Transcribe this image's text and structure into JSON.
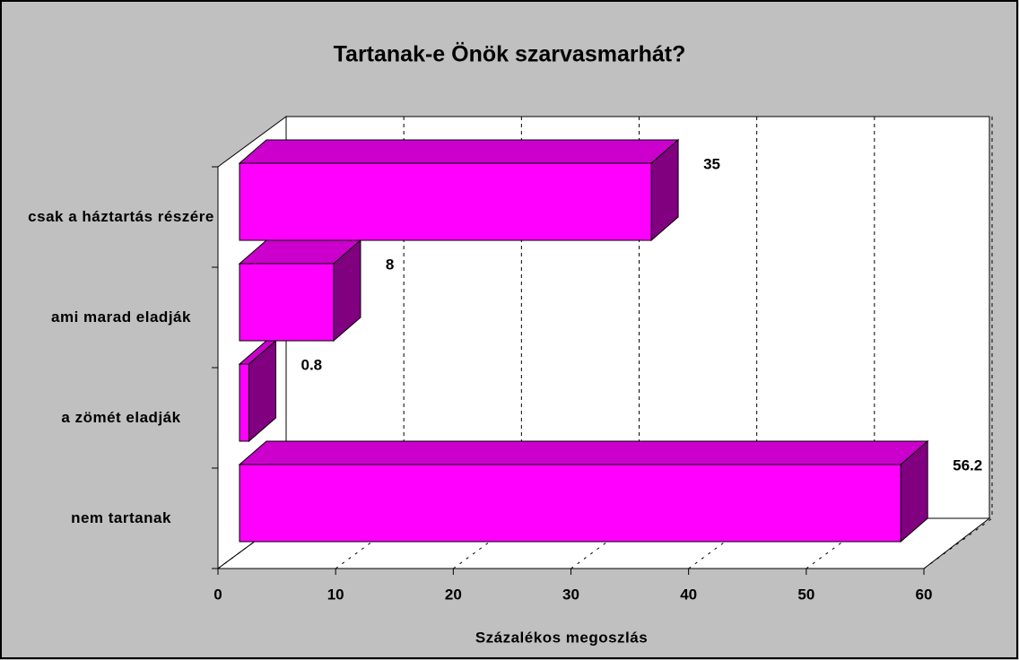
{
  "chart_data": {
    "type": "bar3d",
    "title": "Tartanak-e Önök szarvasmarhát?",
    "categories": [
      "csak a háztartás részére",
      "ami marad eladják",
      "a zömét eladják",
      "nem tartanak"
    ],
    "values": [
      35,
      8,
      0.8,
      56.2
    ],
    "color": "#ff00ff",
    "x_label": "Százalékos megoszlás",
    "xlim": [
      0,
      60
    ],
    "xticks": [
      0,
      10,
      20,
      30,
      40,
      50,
      60
    ],
    "grid": true
  }
}
